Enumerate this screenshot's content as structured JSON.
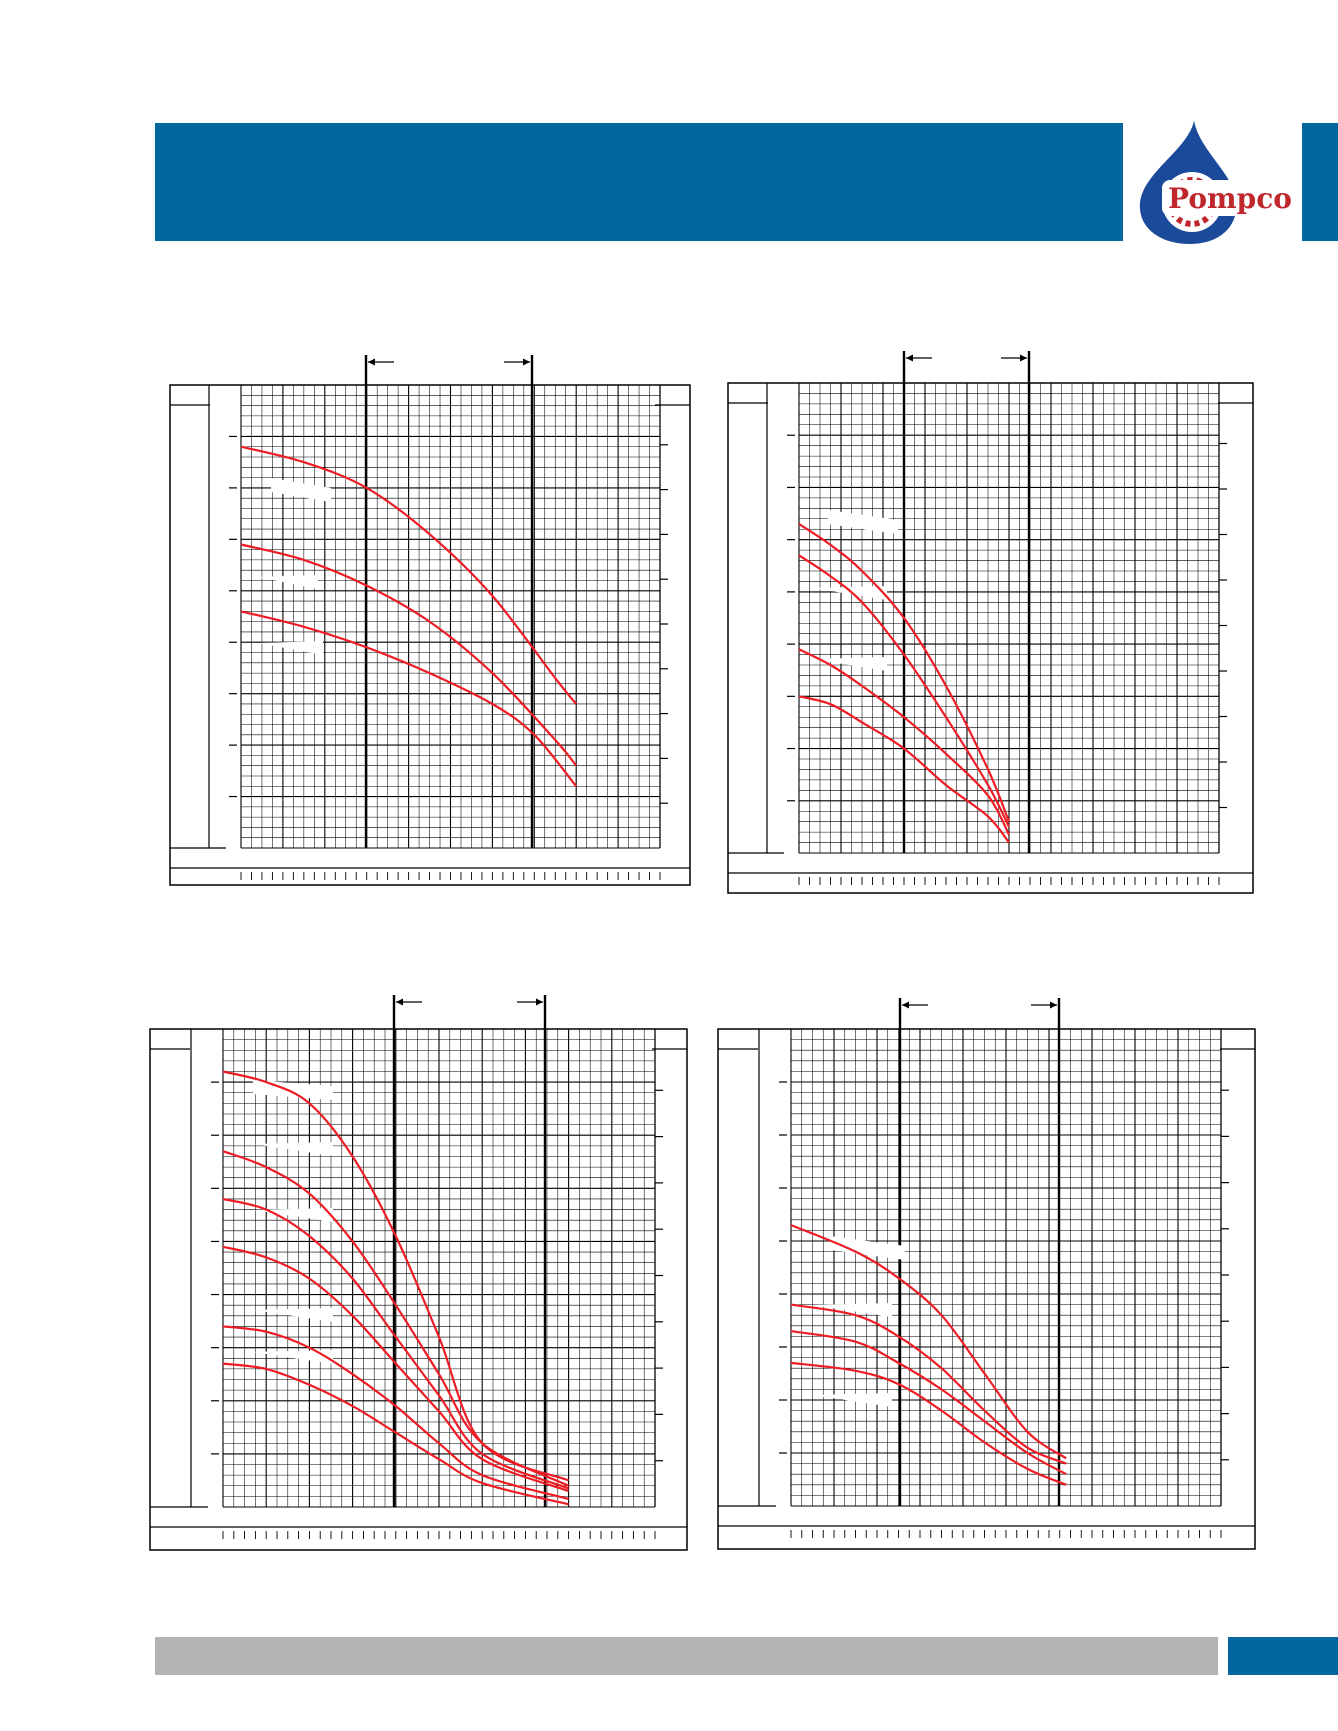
{
  "colors": {
    "header_blue": "#02679f",
    "footer_gray": "#b3b3b3",
    "curve_red": "#ee1c25",
    "grid_black": "#000000",
    "logo_blue": "#1c4a9a",
    "logo_red": "#c0272d"
  },
  "logo": {
    "text": "Pompco",
    "icon": "water-drop-gear-icon"
  },
  "chart_data": [
    {
      "type": "line",
      "grid": true,
      "series": [
        {
          "values": [
            [
              0,
              7.8
            ],
            [
              3,
              7.5
            ],
            [
              6,
              7.0
            ],
            [
              9,
              6.1
            ],
            [
              12,
              4.9
            ],
            [
              15,
              3.3
            ],
            [
              16,
              2.8
            ]
          ]
        },
        {
          "values": [
            [
              0,
              5.9
            ],
            [
              3,
              5.6
            ],
            [
              6,
              5.1
            ],
            [
              9,
              4.4
            ],
            [
              12,
              3.4
            ],
            [
              15,
              2.1
            ],
            [
              16,
              1.6
            ]
          ]
        },
        {
          "values": [
            [
              0,
              4.6
            ],
            [
              3,
              4.3
            ],
            [
              6,
              3.9
            ],
            [
              9,
              3.4
            ],
            [
              12,
              2.8
            ],
            [
              14,
              2.2
            ],
            [
              16,
              1.2
            ]
          ]
        }
      ]
    },
    {
      "type": "line",
      "grid": true,
      "series": [
        {
          "values": [
            [
              0,
              6.3
            ],
            [
              1.5,
              5.9
            ],
            [
              3,
              5.4
            ],
            [
              5,
              4.5
            ],
            [
              7,
              3.2
            ],
            [
              9,
              1.6
            ],
            [
              10,
              0.6
            ]
          ]
        },
        {
          "values": [
            [
              0,
              5.7
            ],
            [
              1.5,
              5.3
            ],
            [
              3,
              4.8
            ],
            [
              5,
              3.8
            ],
            [
              7,
              2.6
            ],
            [
              9,
              1.3
            ],
            [
              10,
              0.5
            ]
          ]
        },
        {
          "values": [
            [
              0,
              3.9
            ],
            [
              1.5,
              3.6
            ],
            [
              3,
              3.2
            ],
            [
              5,
              2.6
            ],
            [
              7,
              1.9
            ],
            [
              9,
              1.1
            ],
            [
              10,
              0.35
            ]
          ]
        },
        {
          "values": [
            [
              0,
              3.0
            ],
            [
              1.5,
              2.85
            ],
            [
              3,
              2.5
            ],
            [
              5,
              2.0
            ],
            [
              7,
              1.3
            ],
            [
              9,
              0.7
            ],
            [
              10,
              0.2
            ]
          ]
        }
      ]
    },
    {
      "type": "line",
      "grid": true,
      "series": [
        {
          "values": [
            [
              0,
              8.2
            ],
            [
              2,
              8.0
            ],
            [
              4,
              7.6
            ],
            [
              6,
              6.6
            ],
            [
              8,
              5.1
            ],
            [
              10,
              3.2
            ],
            [
              12,
              1.2
            ],
            [
              16,
              0.5
            ]
          ]
        },
        {
          "values": [
            [
              0,
              6.7
            ],
            [
              2,
              6.4
            ],
            [
              4,
              5.9
            ],
            [
              6,
              5.0
            ],
            [
              8,
              3.8
            ],
            [
              10,
              2.5
            ],
            [
              12,
              1.2
            ],
            [
              16,
              0.4
            ]
          ]
        },
        {
          "values": [
            [
              0,
              5.8
            ],
            [
              2,
              5.6
            ],
            [
              4,
              5.1
            ],
            [
              6,
              4.3
            ],
            [
              8,
              3.2
            ],
            [
              10,
              2.1
            ],
            [
              12,
              1.0
            ],
            [
              16,
              0.35
            ]
          ]
        },
        {
          "values": [
            [
              0,
              4.9
            ],
            [
              2,
              4.7
            ],
            [
              4,
              4.3
            ],
            [
              6,
              3.6
            ],
            [
              8,
              2.7
            ],
            [
              10,
              1.8
            ],
            [
              12,
              0.9
            ],
            [
              16,
              0.3
            ]
          ]
        },
        {
          "values": [
            [
              0,
              3.4
            ],
            [
              2,
              3.3
            ],
            [
              4,
              3.0
            ],
            [
              6,
              2.5
            ],
            [
              8,
              1.9
            ],
            [
              10,
              1.2
            ],
            [
              12,
              0.6
            ],
            [
              16,
              0.15
            ]
          ]
        },
        {
          "values": [
            [
              0,
              2.7
            ],
            [
              2,
              2.6
            ],
            [
              4,
              2.3
            ],
            [
              6,
              1.9
            ],
            [
              8,
              1.4
            ],
            [
              10,
              0.9
            ],
            [
              12,
              0.45
            ],
            [
              16,
              0.05
            ]
          ]
        }
      ]
    },
    {
      "type": "line",
      "grid": true,
      "series": [
        {
          "values": [
            [
              0,
              5.3
            ],
            [
              3,
              4.8
            ],
            [
              5,
              4.3
            ],
            [
              7,
              3.6
            ],
            [
              9,
              2.5
            ],
            [
              11,
              1.4
            ],
            [
              12.8,
              0.9
            ]
          ]
        },
        {
          "values": [
            [
              0,
              3.8
            ],
            [
              3,
              3.6
            ],
            [
              5,
              3.2
            ],
            [
              7,
              2.6
            ],
            [
              9,
              1.8
            ],
            [
              11,
              1.1
            ],
            [
              12.8,
              0.8
            ]
          ]
        },
        {
          "values": [
            [
              0,
              3.3
            ],
            [
              3,
              3.1
            ],
            [
              5,
              2.7
            ],
            [
              7,
              2.2
            ],
            [
              9,
              1.6
            ],
            [
              11,
              1.0
            ],
            [
              12.8,
              0.6
            ]
          ]
        },
        {
          "values": [
            [
              0,
              2.7
            ],
            [
              3,
              2.55
            ],
            [
              5,
              2.3
            ],
            [
              7,
              1.8
            ],
            [
              9,
              1.2
            ],
            [
              11,
              0.7
            ],
            [
              12.8,
              0.4
            ]
          ]
        }
      ]
    }
  ]
}
